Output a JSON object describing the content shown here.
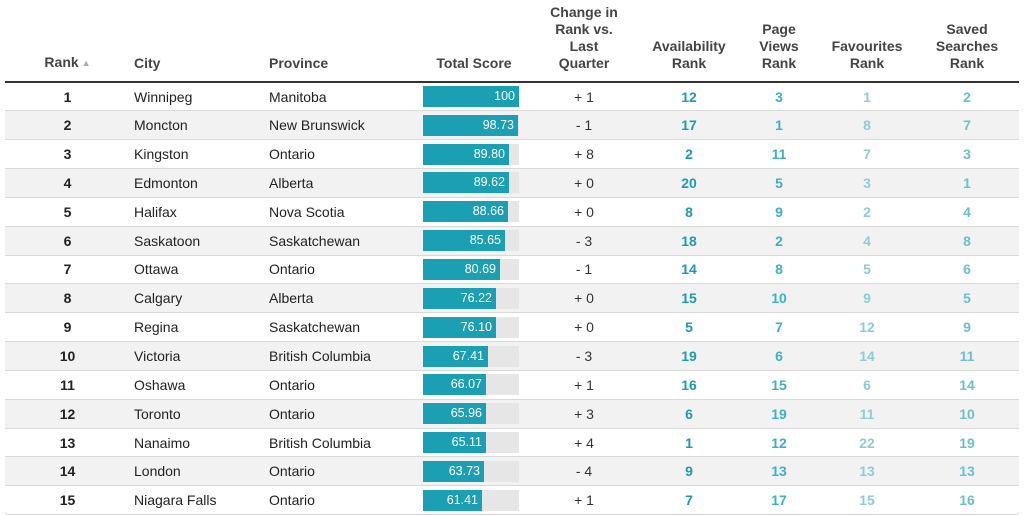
{
  "columns": {
    "rank": "Rank",
    "city": "City",
    "province": "Province",
    "total_score": "Total Score",
    "change_lines": [
      "Change in",
      "Rank vs.",
      "Last",
      "Quarter"
    ],
    "availability_lines": [
      "Availability",
      "Rank"
    ],
    "page_views_lines": [
      "Page",
      "Views",
      "Rank"
    ],
    "favourites_lines": [
      "Favourites",
      "Rank"
    ],
    "saved_searches_lines": [
      "Saved",
      "Searches",
      "Rank"
    ]
  },
  "colors": {
    "bar": "#1a9fb3",
    "availability": "#1b9bb0",
    "page_views": "#3bb1c2",
    "favourites": "#8ccdd7",
    "saved_searches": "#6cc0cd"
  },
  "rows": [
    {
      "rank": "1",
      "city": "Winnipeg",
      "province": "Manitoba",
      "score": "100",
      "score_value": 100,
      "change": "+ 1",
      "availability": "12",
      "page_views": "3",
      "favourites": "1",
      "saved_searches": "2"
    },
    {
      "rank": "2",
      "city": "Moncton",
      "province": "New Brunswick",
      "score": "98.73",
      "score_value": 98.73,
      "change": "- 1",
      "availability": "17",
      "page_views": "1",
      "favourites": "8",
      "saved_searches": "7"
    },
    {
      "rank": "3",
      "city": "Kingston",
      "province": "Ontario",
      "score": "89.80",
      "score_value": 89.8,
      "change": "+ 8",
      "availability": "2",
      "page_views": "11",
      "favourites": "7",
      "saved_searches": "3"
    },
    {
      "rank": "4",
      "city": "Edmonton",
      "province": "Alberta",
      "score": "89.62",
      "score_value": 89.62,
      "change": "+ 0",
      "availability": "20",
      "page_views": "5",
      "favourites": "3",
      "saved_searches": "1"
    },
    {
      "rank": "5",
      "city": "Halifax",
      "province": "Nova Scotia",
      "score": "88.66",
      "score_value": 88.66,
      "change": "+ 0",
      "availability": "8",
      "page_views": "9",
      "favourites": "2",
      "saved_searches": "4"
    },
    {
      "rank": "6",
      "city": "Saskatoon",
      "province": "Saskatchewan",
      "score": "85.65",
      "score_value": 85.65,
      "change": "- 3",
      "availability": "18",
      "page_views": "2",
      "favourites": "4",
      "saved_searches": "8"
    },
    {
      "rank": "7",
      "city": "Ottawa",
      "province": "Ontario",
      "score": "80.69",
      "score_value": 80.69,
      "change": "- 1",
      "availability": "14",
      "page_views": "8",
      "favourites": "5",
      "saved_searches": "6"
    },
    {
      "rank": "8",
      "city": "Calgary",
      "province": "Alberta",
      "score": "76.22",
      "score_value": 76.22,
      "change": "+ 0",
      "availability": "15",
      "page_views": "10",
      "favourites": "9",
      "saved_searches": "5"
    },
    {
      "rank": "9",
      "city": "Regina",
      "province": "Saskatchewan",
      "score": "76.10",
      "score_value": 76.1,
      "change": "+ 0",
      "availability": "5",
      "page_views": "7",
      "favourites": "12",
      "saved_searches": "9"
    },
    {
      "rank": "10",
      "city": "Victoria",
      "province": "British Columbia",
      "score": "67.41",
      "score_value": 67.41,
      "change": "- 3",
      "availability": "19",
      "page_views": "6",
      "favourites": "14",
      "saved_searches": "11"
    },
    {
      "rank": "11",
      "city": "Oshawa",
      "province": "Ontario",
      "score": "66.07",
      "score_value": 66.07,
      "change": "+ 1",
      "availability": "16",
      "page_views": "15",
      "favourites": "6",
      "saved_searches": "14"
    },
    {
      "rank": "12",
      "city": "Toronto",
      "province": "Ontario",
      "score": "65.96",
      "score_value": 65.96,
      "change": "+ 3",
      "availability": "6",
      "page_views": "19",
      "favourites": "11",
      "saved_searches": "10"
    },
    {
      "rank": "13",
      "city": "Nanaimo",
      "province": "British Columbia",
      "score": "65.11",
      "score_value": 65.11,
      "change": "+ 4",
      "availability": "1",
      "page_views": "12",
      "favourites": "22",
      "saved_searches": "19"
    },
    {
      "rank": "14",
      "city": "London",
      "province": "Ontario",
      "score": "63.73",
      "score_value": 63.73,
      "change": "- 4",
      "availability": "9",
      "page_views": "13",
      "favourites": "13",
      "saved_searches": "13"
    },
    {
      "rank": "15",
      "city": "Niagara Falls",
      "province": "Ontario",
      "score": "61.41",
      "score_value": 61.41,
      "change": "+ 1",
      "availability": "7",
      "page_views": "17",
      "favourites": "15",
      "saved_searches": "16"
    }
  ]
}
